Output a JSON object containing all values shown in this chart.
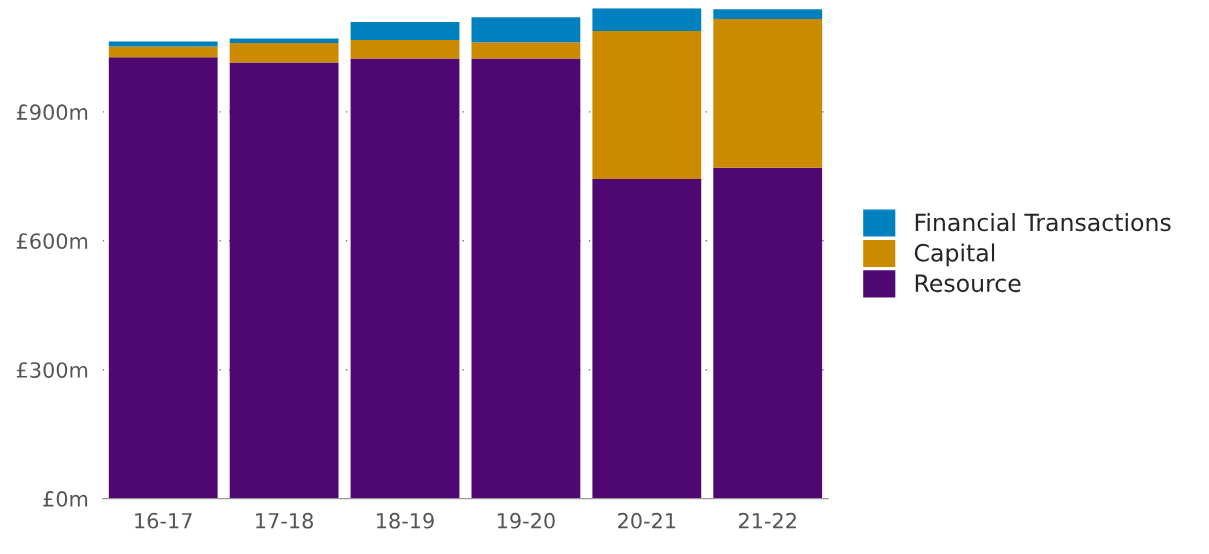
{
  "chart_data": {
    "type": "bar",
    "stacked": true,
    "categories": [
      "16-17",
      "17-18",
      "18-19",
      "19-20",
      "20-21",
      "21-22"
    ],
    "series": [
      {
        "name": "Resource",
        "color": "#4f0872",
        "values": [
          1027,
          1015,
          1024,
          1024,
          744,
          770
        ]
      },
      {
        "name": "Capital",
        "color": "#cc8a00",
        "values": [
          25,
          45,
          43,
          38,
          344,
          346
        ]
      },
      {
        "name": "Financial Transactions",
        "color": "#0081bf",
        "values": [
          12,
          11,
          42,
          58,
          53,
          23
        ]
      }
    ],
    "ylim": [
      0,
      1141
    ],
    "yticks": [
      {
        "value": 0,
        "label": "£0m"
      },
      {
        "value": 300,
        "label": "£300m"
      },
      {
        "value": 600,
        "label": "£600m"
      },
      {
        "value": 900,
        "label": "£900m"
      }
    ],
    "grid": "y",
    "legend": "right"
  }
}
